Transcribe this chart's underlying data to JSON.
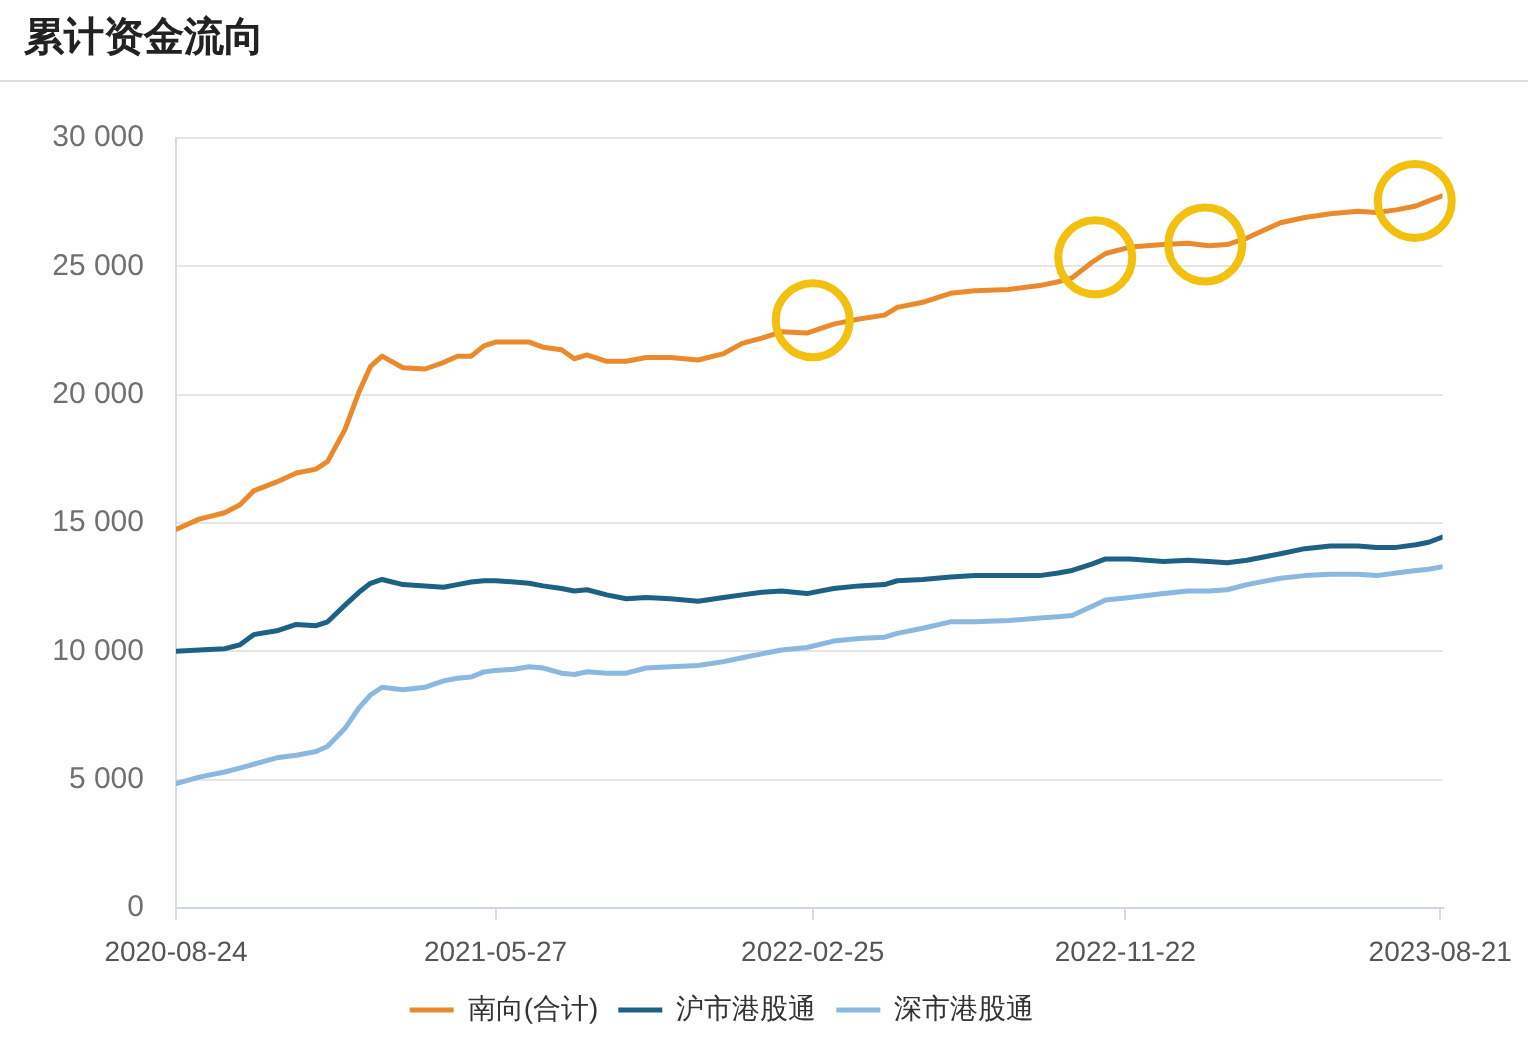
{
  "chart_data": {
    "type": "line",
    "title": "累计资金流向",
    "x": [
      "2020-08-24",
      "2020-09-13",
      "2020-10-05",
      "2020-10-18",
      "2020-10-30",
      "2020-11-19",
      "2020-12-06",
      "2020-12-23",
      "2021-01-02",
      "2021-01-17",
      "2021-01-29",
      "2021-02-08",
      "2021-02-18",
      "2021-03-08",
      "2021-03-27",
      "2021-04-12",
      "2021-04-24",
      "2021-05-06",
      "2021-05-17",
      "2021-05-27",
      "2021-06-12",
      "2021-06-25",
      "2021-07-07",
      "2021-07-23",
      "2021-08-03",
      "2021-08-14",
      "2021-08-31",
      "2021-09-17",
      "2021-10-04",
      "2021-10-25",
      "2021-11-18",
      "2021-12-10",
      "2021-12-26",
      "2022-01-12",
      "2022-01-29",
      "2022-02-20",
      "2022-03-15",
      "2022-04-06",
      "2022-04-28",
      "2022-05-09",
      "2022-05-31",
      "2022-06-24",
      "2022-07-15",
      "2022-08-13",
      "2022-09-09",
      "2022-09-25",
      "2022-10-07",
      "2022-10-24",
      "2022-11-05",
      "2022-11-26",
      "2022-12-25",
      "2023-01-15",
      "2023-02-02",
      "2023-02-18",
      "2023-03-07",
      "2023-04-05",
      "2023-04-26",
      "2023-05-18",
      "2023-06-11",
      "2023-06-27",
      "2023-07-14",
      "2023-07-31",
      "2023-08-11",
      "2023-08-23"
    ],
    "series": [
      {
        "name": "南向(合计)",
        "color": "#ea8a2c",
        "values": [
          14750,
          15150,
          15400,
          15700,
          16250,
          16600,
          16950,
          17100,
          17400,
          18650,
          20100,
          21100,
          21500,
          21050,
          21000,
          21250,
          21500,
          21500,
          21900,
          22050,
          22050,
          22050,
          21850,
          21750,
          21400,
          21550,
          21300,
          21300,
          21450,
          21450,
          21350,
          21600,
          22000,
          22200,
          22450,
          22400,
          22750,
          22950,
          23100,
          23400,
          23600,
          23950,
          24050,
          24100,
          24250,
          24400,
          24550,
          25150,
          25500,
          25750,
          25850,
          25900,
          25800,
          25850,
          26100,
          26700,
          26900,
          27050,
          27150,
          27100,
          27200,
          27350,
          27550,
          27750
        ]
      },
      {
        "name": "沪市港股通",
        "color": "#1d6184",
        "values": [
          10000,
          10050,
          10100,
          10250,
          10650,
          10800,
          11050,
          11000,
          11150,
          11800,
          12300,
          12650,
          12800,
          12600,
          12550,
          12500,
          12600,
          12700,
          12750,
          12750,
          12700,
          12650,
          12550,
          12450,
          12350,
          12400,
          12200,
          12050,
          12100,
          12050,
          11950,
          12100,
          12200,
          12300,
          12350,
          12250,
          12450,
          12550,
          12600,
          12750,
          12800,
          12900,
          12950,
          12950,
          12950,
          13050,
          13150,
          13400,
          13600,
          13600,
          13500,
          13550,
          13500,
          13450,
          13550,
          13800,
          14000,
          14100,
          14100,
          14050,
          14050,
          14150,
          14250,
          14450
        ]
      },
      {
        "name": "深市港股通",
        "color": "#8ab8df",
        "values": [
          4850,
          5100,
          5300,
          5450,
          5600,
          5850,
          5950,
          6100,
          6300,
          7000,
          7800,
          8300,
          8600,
          8500,
          8600,
          8850,
          8950,
          9000,
          9200,
          9250,
          9300,
          9400,
          9350,
          9150,
          9100,
          9200,
          9150,
          9150,
          9350,
          9400,
          9450,
          9600,
          9750,
          9900,
          10050,
          10150,
          10400,
          10500,
          10550,
          10700,
          10900,
          11150,
          11150,
          11200,
          11300,
          11350,
          11400,
          11750,
          12000,
          12100,
          12250,
          12350,
          12350,
          12400,
          12600,
          12850,
          12950,
          13000,
          13000,
          12950,
          13050,
          13150,
          13200,
          13300
        ]
      },
      {
        "type": "scatter",
        "marker": "circle",
        "color": "#f2c10f",
        "x": [
          "2022-02-25",
          "2022-10-27",
          "2023-01-30",
          "2023-07-30"
        ],
        "values": [
          22900,
          25350,
          25850,
          27550
        ]
      }
    ],
    "xlim": [
      "2020-08-24",
      "2023-08-23"
    ],
    "xticks": [
      "2020-08-24",
      "2021-05-27",
      "2022-02-25",
      "2022-11-22",
      "2023-08-21"
    ],
    "ylim": [
      0,
      30000
    ],
    "yticks": [
      0,
      {
        "value": 5000,
        "label": "5 000"
      },
      {
        "value": 10000,
        "label": "10 000"
      },
      {
        "value": 15000,
        "label": "15 000"
      },
      {
        "value": 20000,
        "label": "20 000"
      },
      {
        "value": 25000,
        "label": "25 000"
      },
      {
        "value": 30000,
        "label": "30 000"
      }
    ],
    "grid": "y",
    "legend": "bottom"
  }
}
